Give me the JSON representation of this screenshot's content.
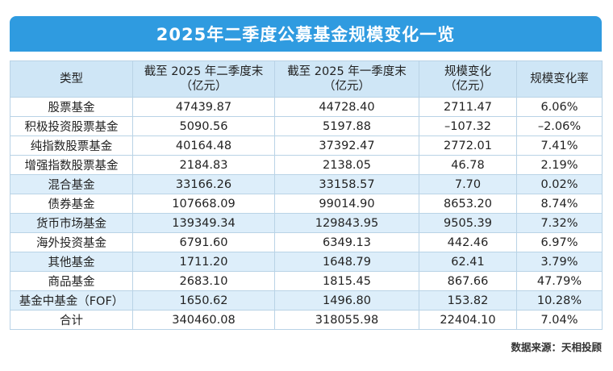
{
  "title": "2025年二季度公募基金规模变化一览",
  "headers": {
    "type": "类型",
    "q2": "截至 2025 年二季度末\n（亿元）",
    "q1": "截至 2025 年一季度末\n（亿元）",
    "change": "规模变化\n（亿元）",
    "rate": "规模变化率"
  },
  "rows": [
    {
      "type": "股票基金",
      "q2": "47439.87",
      "q1": "44728.40",
      "change": "2711.47",
      "rate": "6.06%"
    },
    {
      "type": "积极投资股票基金",
      "q2": "5090.56",
      "q1": "5197.88",
      "change": "–107.32",
      "rate": "–2.06%"
    },
    {
      "type": "纯指数股票基金",
      "q2": "40164.48",
      "q1": "37392.47",
      "change": "2772.01",
      "rate": "7.41%"
    },
    {
      "type": "增强指数股票基金",
      "q2": "2184.83",
      "q1": "2138.05",
      "change": "46.78",
      "rate": "2.19%"
    },
    {
      "type": "混合基金",
      "q2": "33166.26",
      "q1": "33158.57",
      "change": "7.70",
      "rate": "0.02%"
    },
    {
      "type": "债券基金",
      "q2": "107668.09",
      "q1": "99014.90",
      "change": "8653.20",
      "rate": "8.74%"
    },
    {
      "type": "货币市场基金",
      "q2": "139349.34",
      "q1": "129843.95",
      "change": "9505.39",
      "rate": "7.32%"
    },
    {
      "type": "海外投资基金",
      "q2": "6791.60",
      "q1": "6349.13",
      "change": "442.46",
      "rate": "6.97%"
    },
    {
      "type": "其他基金",
      "q2": "1711.20",
      "q1": "1648.79",
      "change": "62.41",
      "rate": "3.79%"
    },
    {
      "type": "商品基金",
      "q2": "2683.10",
      "q1": "1815.45",
      "change": "867.66",
      "rate": "47.79%"
    },
    {
      "type": "基金中基金（FOF）",
      "q2": "1650.62",
      "q1": "1496.80",
      "change": "153.82",
      "rate": "10.28%"
    },
    {
      "type": "合计",
      "q2": "340460.08",
      "q1": "318055.98",
      "change": "22404.10",
      "rate": "7.04%"
    }
  ],
  "source": "数据来源：天相投顾",
  "colors": {
    "title_bg": "#2f9be0",
    "header_bg": "#cfe6f6",
    "alt_row_bg": "#ddeefa",
    "border": "#b9d3e6"
  }
}
